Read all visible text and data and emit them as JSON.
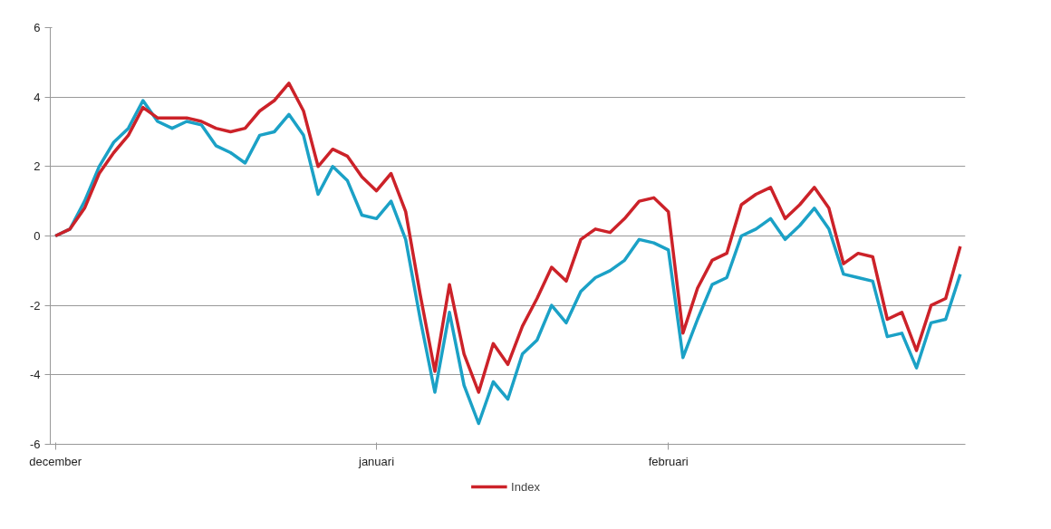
{
  "chart_data": {
    "type": "line",
    "categories": [
      "december",
      null,
      null,
      null,
      null,
      null,
      null,
      null,
      null,
      null,
      null,
      null,
      null,
      null,
      null,
      null,
      null,
      null,
      null,
      null,
      null,
      null,
      "januari",
      null,
      null,
      null,
      null,
      null,
      null,
      null,
      null,
      null,
      null,
      null,
      null,
      null,
      null,
      null,
      null,
      null,
      null,
      null,
      "februari",
      null,
      null,
      null,
      null,
      null,
      null,
      null,
      null,
      null,
      null,
      null,
      null,
      null,
      null,
      null,
      null,
      null,
      null,
      null,
      null
    ],
    "ylim": [
      -6,
      6
    ],
    "yticks": [
      -6,
      -4,
      -2,
      0,
      2,
      4,
      6
    ],
    "grid": "y",
    "legend": "bottom",
    "line_style": "solid",
    "marker": "none",
    "series": [
      {
        "color": "#1ba1c6",
        "values": [
          0,
          0.2,
          1,
          2,
          2.7,
          3.1,
          3.9,
          3.3,
          3.1,
          3.3,
          3.2,
          2.6,
          2.4,
          2.1,
          2.9,
          3,
          3.5,
          2.9,
          1.2,
          2,
          1.6,
          0.6,
          0.5,
          1,
          -0.1,
          -2.4,
          -4.5,
          -2.2,
          -4.3,
          -5.4,
          -4.2,
          -4.7,
          -3.4,
          -3,
          -2,
          -2.5,
          -1.6,
          -1.2,
          -1,
          -0.7,
          -0.1,
          -0.2,
          -0.4,
          -3.5,
          -2.4,
          -1.4,
          -1.2,
          0,
          0.2,
          0.5,
          -0.1,
          0.3,
          0.8,
          0.2,
          -1.1,
          -1.2,
          -1.3,
          -2.9,
          -2.8,
          -3.8,
          -2.5,
          -2.4,
          -1.1
        ]
      },
      {
        "name": "Index",
        "color": "#cc2229",
        "values": [
          0,
          0.2,
          0.8,
          1.8,
          2.4,
          2.9,
          3.7,
          3.4,
          3.4,
          3.4,
          3.3,
          3.1,
          3,
          3.1,
          3.6,
          3.9,
          4.4,
          3.6,
          2,
          2.5,
          2.3,
          1.7,
          1.3,
          1.8,
          0.7,
          -1.7,
          -3.9,
          -1.4,
          -3.4,
          -4.5,
          -3.1,
          -3.7,
          -2.6,
          -1.8,
          -0.9,
          -1.3,
          -0.1,
          0.2,
          0.1,
          0.5,
          1,
          1.1,
          0.7,
          -2.8,
          -1.5,
          -0.7,
          -0.5,
          0.9,
          1.2,
          1.4,
          0.5,
          0.9,
          1.4,
          0.8,
          -0.8,
          -0.5,
          -0.6,
          -2.4,
          -2.2,
          -3.3,
          -2,
          -1.8,
          -0.3
        ]
      }
    ]
  }
}
